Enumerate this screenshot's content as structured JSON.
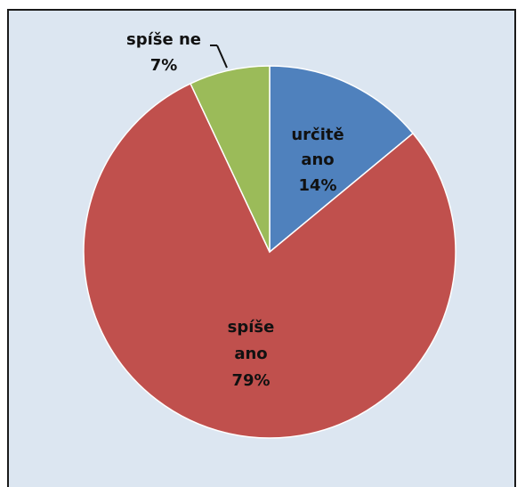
{
  "chart_data": {
    "type": "pie",
    "slices": [
      {
        "name": "určitě ano",
        "label_lines": [
          "určitě",
          "ano"
        ],
        "value": 14,
        "value_label": "14%",
        "color": "#4f81bd"
      },
      {
        "name": "spíše ano",
        "label_lines": [
          "spíše",
          "ano"
        ],
        "value": 79,
        "value_label": "79%",
        "color": "#c0504d"
      },
      {
        "name": "spíše ne",
        "label_lines": [
          "spíše ne"
        ],
        "value": 7,
        "value_label": "7%",
        "color": "#9bbb59"
      }
    ],
    "start_angle_deg": 0,
    "direction": "clockwise",
    "background": "#dce6f1"
  }
}
